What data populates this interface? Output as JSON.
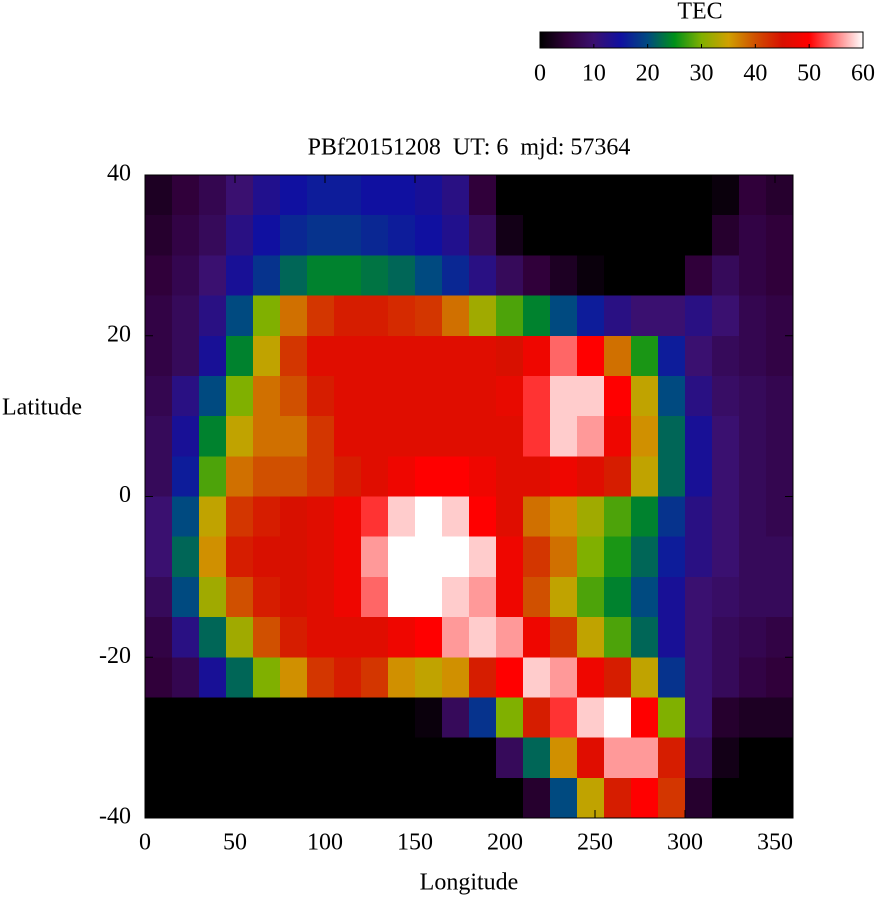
{
  "chart_data": {
    "type": "heatmap",
    "title": "PBf20151208  UT: 6  mjd: 57364",
    "xlabel": "Longitude",
    "ylabel": "Latitude",
    "xlim": [
      0,
      360
    ],
    "ylim": [
      -40,
      40
    ],
    "xticks": [
      0,
      50,
      100,
      150,
      200,
      250,
      300,
      350
    ],
    "yticks": [
      -40,
      -20,
      0,
      20,
      40
    ],
    "x": [
      7.5,
      22.5,
      37.5,
      52.5,
      67.5,
      82.5,
      97.5,
      112.5,
      127.5,
      142.5,
      157.5,
      172.5,
      187.5,
      202.5,
      217.5,
      232.5,
      247.5,
      262.5,
      277.5,
      292.5,
      307.5,
      322.5,
      337.5,
      352.5
    ],
    "y": [
      37.5,
      32.5,
      27.5,
      22.5,
      17.5,
      12.5,
      7.5,
      2.5,
      -2.5,
      -7.5,
      -12.5,
      -17.5,
      -22.5,
      -27.5,
      -32.5,
      -37.5
    ],
    "values": [
      [
        3,
        5,
        7,
        10,
        13,
        15,
        16,
        16,
        15,
        15,
        14,
        12,
        5,
        0,
        0,
        0,
        0,
        0,
        0,
        0,
        0,
        1,
        5,
        4
      ],
      [
        4,
        6,
        8,
        12,
        15,
        17,
        18,
        18,
        17,
        16,
        15,
        13,
        8,
        2,
        0,
        0,
        0,
        0,
        0,
        0,
        0,
        4,
        6,
        5
      ],
      [
        5,
        7,
        10,
        14,
        18,
        22,
        24,
        24,
        23,
        22,
        20,
        17,
        12,
        8,
        5,
        3,
        1,
        0,
        0,
        0,
        5,
        8,
        6,
        5
      ],
      [
        6,
        8,
        12,
        20,
        30,
        38,
        42,
        44,
        44,
        43,
        42,
        38,
        32,
        28,
        24,
        20,
        16,
        12,
        10,
        10,
        12,
        10,
        7,
        6
      ],
      [
        6,
        8,
        14,
        24,
        34,
        42,
        46,
        46,
        46,
        46,
        46,
        46,
        46,
        45,
        48,
        54,
        50,
        38,
        26,
        16,
        10,
        8,
        7,
        6
      ],
      [
        7,
        12,
        20,
        30,
        38,
        40,
        44,
        46,
        46,
        46,
        46,
        46,
        46,
        47,
        52,
        58,
        58,
        50,
        34,
        20,
        12,
        9,
        8,
        7
      ],
      [
        8,
        14,
        24,
        34,
        38,
        38,
        42,
        46,
        46,
        46,
        46,
        46,
        46,
        46,
        52,
        58,
        56,
        48,
        36,
        22,
        14,
        10,
        8,
        7
      ],
      [
        8,
        16,
        28,
        38,
        40,
        40,
        42,
        44,
        46,
        48,
        50,
        50,
        48,
        46,
        46,
        48,
        46,
        44,
        34,
        22,
        14,
        10,
        8,
        7
      ],
      [
        10,
        20,
        34,
        42,
        44,
        45,
        46,
        48,
        52,
        58,
        60,
        58,
        50,
        46,
        38,
        36,
        32,
        28,
        24,
        18,
        12,
        10,
        8,
        7
      ],
      [
        10,
        22,
        36,
        44,
        45,
        45,
        46,
        48,
        56,
        60,
        60,
        60,
        58,
        48,
        42,
        38,
        30,
        26,
        22,
        16,
        12,
        10,
        8,
        8
      ],
      [
        8,
        20,
        32,
        40,
        44,
        45,
        46,
        48,
        54,
        60,
        60,
        58,
        56,
        48,
        40,
        34,
        28,
        24,
        20,
        14,
        10,
        9,
        8,
        8
      ],
      [
        6,
        12,
        22,
        32,
        40,
        44,
        46,
        46,
        46,
        48,
        50,
        56,
        58,
        56,
        48,
        42,
        34,
        28,
        22,
        14,
        10,
        8,
        7,
        6
      ],
      [
        5,
        7,
        14,
        22,
        30,
        36,
        42,
        44,
        42,
        36,
        34,
        36,
        44,
        50,
        58,
        56,
        48,
        44,
        34,
        18,
        10,
        8,
        6,
        5
      ],
      [
        0,
        0,
        0,
        0,
        0,
        0,
        0,
        0,
        0,
        0,
        1,
        8,
        18,
        30,
        44,
        52,
        58,
        60,
        50,
        30,
        10,
        4,
        3,
        3
      ],
      [
        0,
        0,
        0,
        0,
        0,
        0,
        0,
        0,
        0,
        0,
        0,
        0,
        0,
        8,
        22,
        36,
        46,
        56,
        56,
        44,
        8,
        2,
        0,
        0
      ],
      [
        0,
        0,
        0,
        0,
        0,
        0,
        0,
        0,
        0,
        0,
        0,
        0,
        0,
        0,
        4,
        20,
        34,
        44,
        50,
        42,
        4,
        0,
        0,
        0
      ]
    ],
    "colorbar": {
      "label": "TEC",
      "lim": [
        0,
        60
      ],
      "ticks": [
        0,
        10,
        20,
        30,
        40,
        50,
        60
      ],
      "colors": [
        "#000000",
        "#30003a",
        "#3a1070",
        "#1010a0",
        "#004a80",
        "#00901a",
        "#80b000",
        "#d0a000",
        "#d05000",
        "#d81000",
        "#ff0000",
        "#ff8080",
        "#ffffff"
      ]
    }
  }
}
